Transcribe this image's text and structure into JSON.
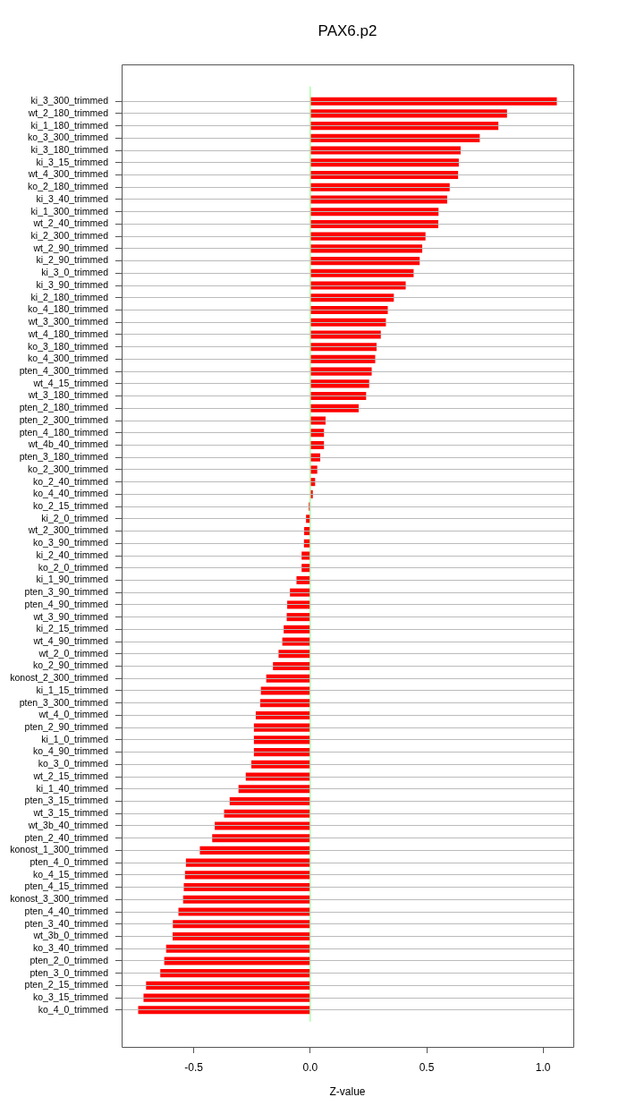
{
  "chart_data": {
    "type": "bar",
    "orientation": "horizontal",
    "title": "PAX6.p2",
    "xlabel": "Z-value",
    "categories": [
      "ki_3_300_trimmed",
      "wt_2_180_trimmed",
      "ki_1_180_trimmed",
      "ko_3_300_trimmed",
      "ki_3_180_trimmed",
      "ki_3_15_trimmed",
      "wt_4_300_trimmed",
      "ko_2_180_trimmed",
      "ki_3_40_trimmed",
      "ki_1_300_trimmed",
      "wt_2_40_trimmed",
      "ki_2_300_trimmed",
      "wt_2_90_trimmed",
      "ki_2_90_trimmed",
      "ki_3_0_trimmed",
      "ki_3_90_trimmed",
      "ki_2_180_trimmed",
      "ko_4_180_trimmed",
      "wt_3_300_trimmed",
      "wt_4_180_trimmed",
      "ko_3_180_trimmed",
      "ko_4_300_trimmed",
      "pten_4_300_trimmed",
      "wt_4_15_trimmed",
      "wt_3_180_trimmed",
      "pten_2_180_trimmed",
      "pten_2_300_trimmed",
      "pten_4_180_trimmed",
      "wt_4b_40_trimmed",
      "pten_3_180_trimmed",
      "ko_2_300_trimmed",
      "ko_2_40_trimmed",
      "ko_4_40_trimmed",
      "ko_2_15_trimmed",
      "ki_2_0_trimmed",
      "wt_2_300_trimmed",
      "ko_3_90_trimmed",
      "ki_2_40_trimmed",
      "ko_2_0_trimmed",
      "ki_1_90_trimmed",
      "pten_3_90_trimmed",
      "pten_4_90_trimmed",
      "wt_3_90_trimmed",
      "ki_2_15_trimmed",
      "wt_4_90_trimmed",
      "wt_2_0_trimmed",
      "ko_2_90_trimmed",
      "konost_2_300_trimmed",
      "ki_1_15_trimmed",
      "pten_3_300_trimmed",
      "wt_4_0_trimmed",
      "pten_2_90_trimmed",
      "ki_1_0_trimmed",
      "ko_4_90_trimmed",
      "ko_3_0_trimmed",
      "wt_2_15_trimmed",
      "ki_1_40_trimmed",
      "pten_3_15_trimmed",
      "wt_3_15_trimmed",
      "wt_3b_40_trimmed",
      "pten_2_40_trimmed",
      "konost_1_300_trimmed",
      "pten_4_0_trimmed",
      "ko_4_15_trimmed",
      "pten_4_15_trimmed",
      "konost_3_300_trimmed",
      "pten_4_40_trimmed",
      "pten_3_40_trimmed",
      "wt_3b_0_trimmed",
      "ko_3_40_trimmed",
      "pten_2_0_trimmed",
      "pten_3_0_trimmed",
      "pten_2_15_trimmed",
      "ko_3_15_trimmed",
      "ko_4_0_trimmed"
    ],
    "values": [
      1.059,
      0.845,
      0.808,
      0.728,
      0.646,
      0.638,
      0.635,
      0.599,
      0.588,
      0.551,
      0.55,
      0.495,
      0.481,
      0.47,
      0.444,
      0.41,
      0.359,
      0.333,
      0.325,
      0.303,
      0.285,
      0.279,
      0.264,
      0.253,
      0.24,
      0.208,
      0.066,
      0.059,
      0.059,
      0.043,
      0.03,
      0.021,
      0.011,
      -0.006,
      -0.018,
      -0.026,
      -0.027,
      -0.037,
      -0.037,
      -0.059,
      -0.087,
      -0.099,
      -0.101,
      -0.114,
      -0.12,
      -0.136,
      -0.16,
      -0.189,
      -0.212,
      -0.215,
      -0.234,
      -0.242,
      -0.242,
      -0.242,
      -0.253,
      -0.277,
      -0.308,
      -0.346,
      -0.37,
      -0.41,
      -0.421,
      -0.474,
      -0.534,
      -0.538,
      -0.543,
      -0.546,
      -0.566,
      -0.59,
      -0.591,
      -0.619,
      -0.627,
      -0.644,
      -0.705,
      -0.716,
      -0.739
    ],
    "color": "#ff0000",
    "xlim": [
      -0.81,
      1.13
    ],
    "xticks": [
      {
        "value": -0.5,
        "label": "-0.5"
      },
      {
        "value": 0,
        "label": "0.0"
      },
      {
        "value": 0.5,
        "label": "0.5"
      },
      {
        "value": 1,
        "label": "1.0"
      }
    ],
    "grid": "y",
    "ref_lines": [
      {
        "axis": "x",
        "value": 0,
        "color": "#80ff80"
      }
    ]
  }
}
